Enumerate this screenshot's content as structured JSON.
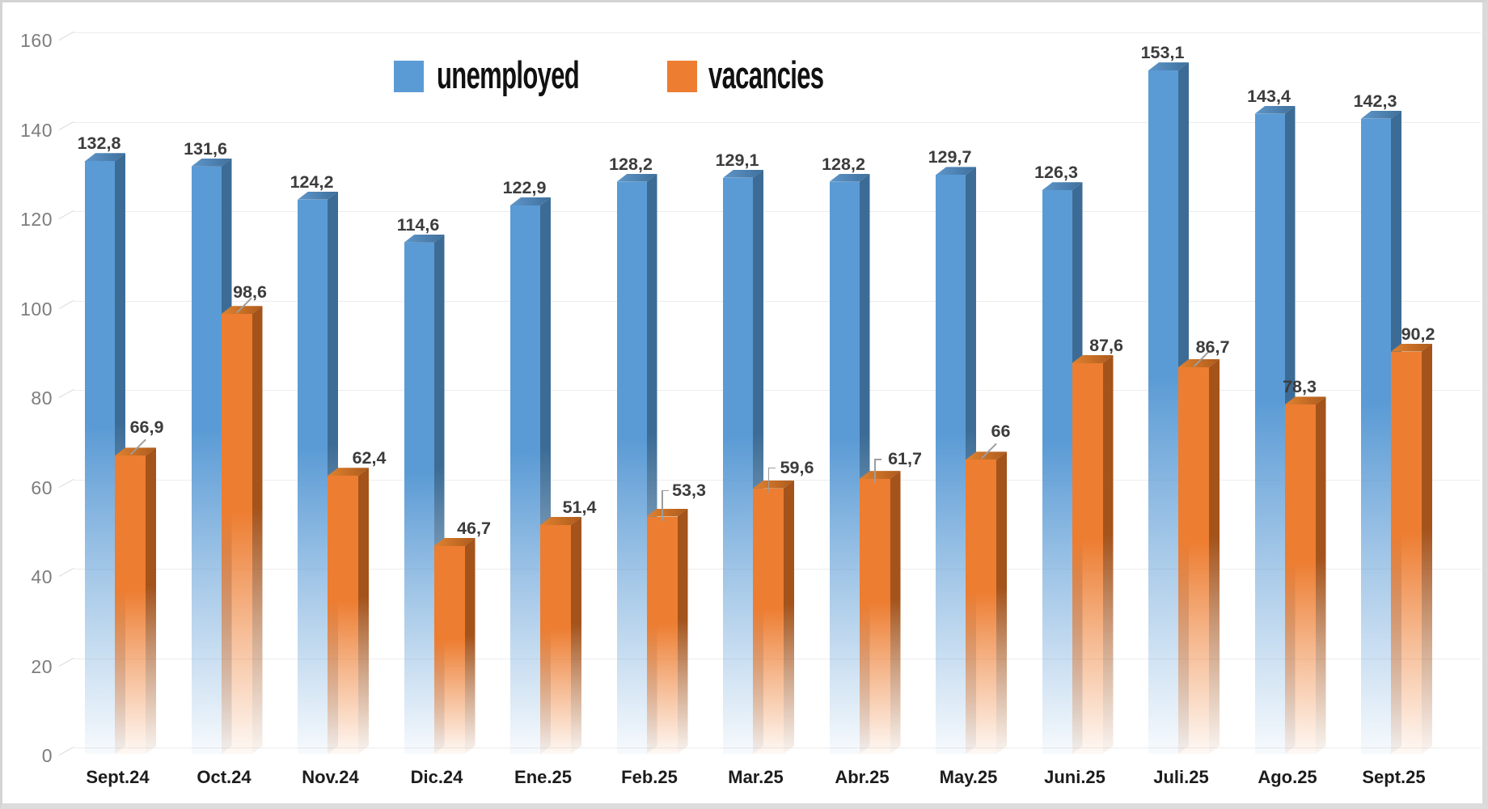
{
  "legend": {
    "items": [
      {
        "label": "unemployed",
        "color": "#5B9BD5"
      },
      {
        "label": "vacancies",
        "color": "#ED7D31"
      }
    ]
  },
  "chart_data": {
    "type": "bar",
    "title": "",
    "xlabel": "",
    "ylabel": "",
    "ylim": [
      0,
      160
    ],
    "yticks": [
      0,
      20,
      40,
      60,
      80,
      100,
      120,
      140,
      160
    ],
    "ytick_labels": [
      "0",
      "20",
      "40",
      "60",
      "80",
      "100",
      "120",
      "140",
      "160"
    ],
    "grid": true,
    "legend_position": "top",
    "decimal_separator": ",",
    "categories": [
      "Sept.24",
      "Oct.24",
      "Nov.24",
      "Dic.24",
      "Ene.25",
      "Feb.25",
      "Mar.25",
      "Abr.25",
      "May.25",
      "Juni.25",
      "Juli.25",
      "Ago.25",
      "Sept.25"
    ],
    "series": [
      {
        "name": "unemployed",
        "color": "#5B9BD5",
        "side_color": "#3C6C96",
        "top_color_left": "#5E96C9",
        "top_color_right": "#3F6F9C",
        "values": [
          132.8,
          131.6,
          124.2,
          114.6,
          122.9,
          128.2,
          129.1,
          128.2,
          129.7,
          126.3,
          153.1,
          143.4,
          142.3
        ],
        "labels": [
          "132,8",
          "131,6",
          "124,2",
          "114,6",
          "122,9",
          "128,2",
          "129,1",
          "128,2",
          "129,7",
          "126,3",
          "153,1",
          "143,4",
          "142,3"
        ]
      },
      {
        "name": "vacancies",
        "color": "#ED7D31",
        "side_color": "#A4531B",
        "top_color_left": "#E08230",
        "top_color_right": "#AC5A1C",
        "values": [
          66.9,
          98.6,
          62.4,
          46.7,
          51.4,
          53.3,
          59.6,
          61.7,
          66,
          87.6,
          86.7,
          78.3,
          90.2
        ],
        "labels": [
          "66,9",
          "98,6",
          "62,4",
          "46,7",
          "51,4",
          "53,3",
          "59,6",
          "61,7",
          "66",
          "87,6",
          "86,7",
          "78,3",
          "90,2"
        ],
        "label_offsets": [
          {
            "dx": 21,
            "dy": -13,
            "leader": "diagonal"
          },
          {
            "dx": 17,
            "dy": -5,
            "leader": "diagonal"
          },
          {
            "dx": 33,
            "dy": 0,
            "leader": "none"
          },
          {
            "dx": 31,
            "dy": 0,
            "leader": "none"
          },
          {
            "dx": 30,
            "dy": 0,
            "leader": "none"
          },
          {
            "dx": 34,
            "dy": -11,
            "leader": "elbow"
          },
          {
            "dx": 36,
            "dy": -4,
            "leader": "elbow"
          },
          {
            "dx": 38,
            "dy": -3,
            "leader": "elbow"
          },
          {
            "dx": 25,
            "dy": -13,
            "leader": "diagonal"
          },
          {
            "dx": 24,
            "dy": 0,
            "leader": "none"
          },
          {
            "dx": 24,
            "dy": -3,
            "leader": "diagonal"
          },
          {
            "dx": 0,
            "dy": 0,
            "leader": "none"
          },
          {
            "dx": 15,
            "dy": 0,
            "leader": "none"
          }
        ]
      }
    ]
  },
  "colors": {
    "grid": "#EDEDED",
    "grid_tick": "#DADADA",
    "axis_text": "#7D7D7D",
    "data_label": "#3C3C3C",
    "category_label": "#1C1C1C",
    "leader_line": "#9D9D9D",
    "frame_border": "#D4D4D4",
    "background": "#FFFFFF"
  }
}
